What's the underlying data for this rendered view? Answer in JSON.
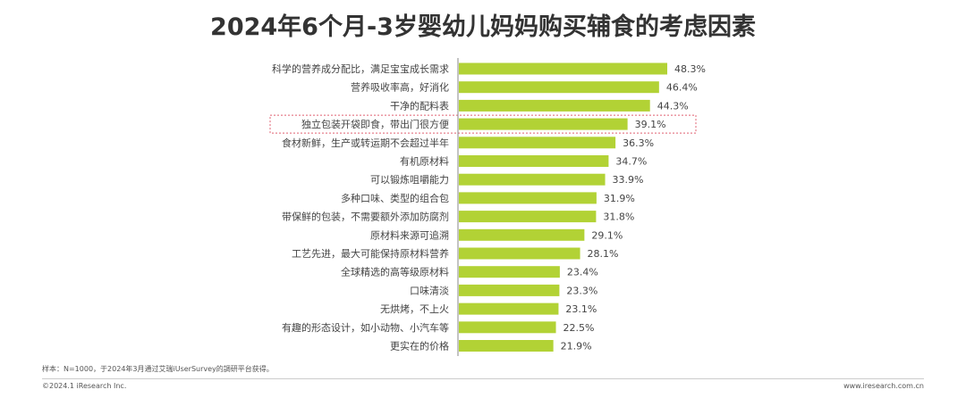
{
  "chart_data": {
    "type": "bar",
    "orientation": "horizontal",
    "title": "2024年6个月-3岁婴幼儿妈妈购买辅食的考虑因素",
    "categories": [
      "科学的营养成分配比，满足宝宝成长需求",
      "营养吸收率高，好消化",
      "干净的配料表",
      "独立包装开袋即食，带出门很方便",
      "食材新鲜，生产或转运期不会超过半年",
      "有机原材料",
      "可以锻炼咀嚼能力",
      "多种口味、类型的组合包",
      "带保鲜的包装，不需要额外添加防腐剂",
      "原材料来源可追溯",
      "工艺先进，最大可能保持原材料营养",
      "全球精选的高等级原材料",
      "口味清淡",
      "无烘烤，不上火",
      "有趣的形态设计，如小动物、小汽车等",
      "更实在的价格"
    ],
    "values": [
      48.3,
      46.4,
      44.3,
      39.1,
      36.3,
      34.7,
      33.9,
      31.9,
      31.8,
      29.1,
      28.1,
      23.4,
      23.3,
      23.1,
      22.5,
      21.9
    ],
    "data_labels": [
      "48.3%",
      "46.4%",
      "44.3%",
      "39.1%",
      "36.3%",
      "34.7%",
      "33.9%",
      "31.9%",
      "31.8%",
      "29.1%",
      "28.1%",
      "23.4%",
      "23.3%",
      "23.1%",
      "22.5%",
      "21.9%"
    ],
    "highlighted_category": "独立包装开袋即食，带出门很方便",
    "xlim": [
      0,
      50
    ],
    "grid": false,
    "bar_color": "#b2d235",
    "highlight_color": "#e06070"
  },
  "footer": {
    "source": "样本：N=1000，于2024年3月通过艾瑞iUserSurvey的調研平台获得。",
    "copyright": "©2024.1 iResearch Inc.",
    "website": "www.iresearch.com.cn"
  }
}
